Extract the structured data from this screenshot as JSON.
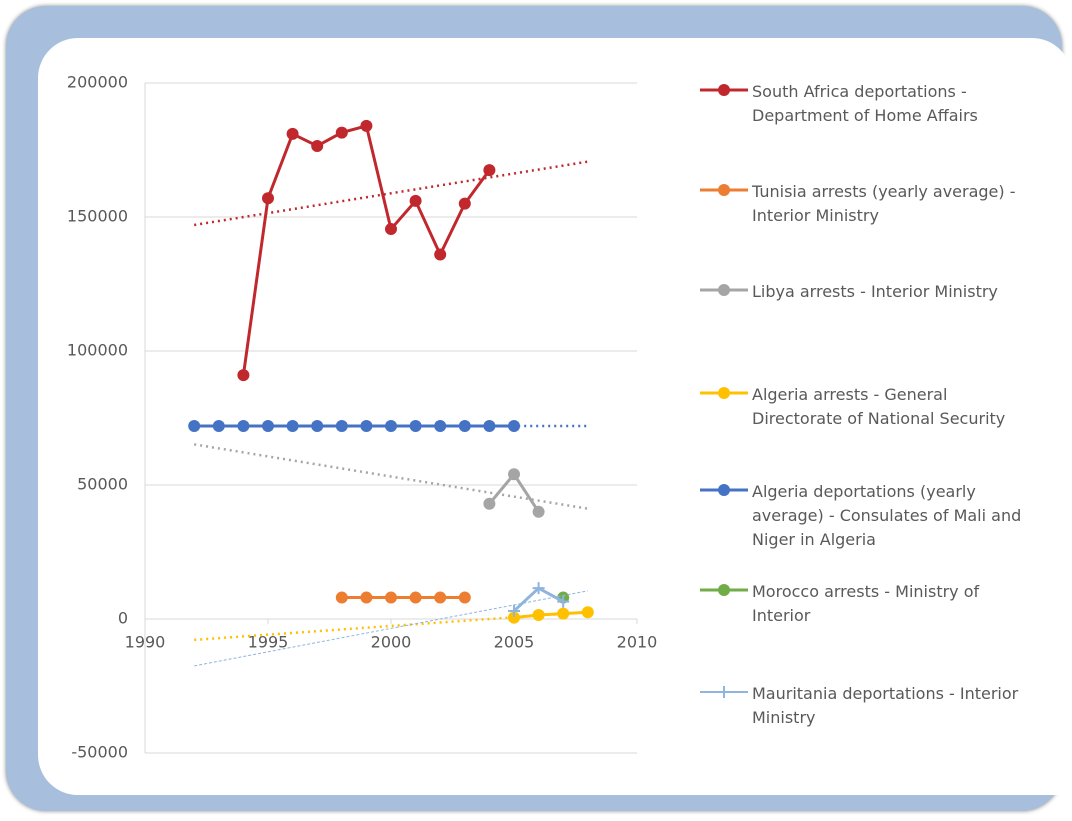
{
  "chart_data": {
    "type": "line",
    "xlim": [
      1990,
      2010
    ],
    "xticks": [
      1990,
      1995,
      2000,
      2005,
      2010
    ],
    "ylim": [
      -50000,
      200000
    ],
    "yticks": [
      -50000,
      0,
      50000,
      100000,
      150000,
      200000
    ],
    "grid": true,
    "legend": "right",
    "trendline_xlim": [
      1992,
      2008
    ],
    "series": [
      {
        "name": "South Africa deportations - Department of Home Affairs",
        "color": "#c0282d",
        "marker": "circle",
        "trendline": "dotted",
        "x": [
          1994,
          1995,
          1996,
          1997,
          1998,
          1999,
          2000,
          2001,
          2002,
          2003,
          2004
        ],
        "values": [
          91000,
          157000,
          181000,
          176500,
          181500,
          184000,
          145500,
          156000,
          136000,
          155000,
          167500
        ]
      },
      {
        "name": "Tunisia arrests (yearly average) - Interior Ministry",
        "color": "#ed7d31",
        "marker": "circle",
        "x": [
          1998,
          1999,
          2000,
          2001,
          2002,
          2003
        ],
        "values": [
          8000,
          8000,
          8000,
          8000,
          8000,
          8000
        ]
      },
      {
        "name": "Libya arrests - Interior Ministry",
        "color": "#a5a5a5",
        "marker": "circle",
        "trendline": "dotted",
        "x": [
          2004,
          2005,
          2006
        ],
        "values": [
          43000,
          54000,
          40000
        ]
      },
      {
        "name": "Algeria arrests - General Directorate of National Security",
        "color": "#ffc000",
        "marker": "circle",
        "trendline": "dotted",
        "x": [
          2005,
          2006,
          2007,
          2008
        ],
        "values": [
          500,
          1500,
          2000,
          2500
        ]
      },
      {
        "name": "Algeria deportations (yearly average) - Consulates of Mali and Niger in Algeria",
        "color": "#4472c4",
        "marker": "circle",
        "trendline": "dotted",
        "x": [
          1992,
          1993,
          1994,
          1995,
          1996,
          1997,
          1998,
          1999,
          2000,
          2001,
          2002,
          2003,
          2004,
          2005
        ],
        "values": [
          72000,
          72000,
          72000,
          72000,
          72000,
          72000,
          72000,
          72000,
          72000,
          72000,
          72000,
          72000,
          72000,
          72000
        ]
      },
      {
        "name": "Morocco arrests - Ministry of Interior",
        "color": "#70ad47",
        "marker": "circle",
        "x": [
          2007
        ],
        "values": [
          8000
        ]
      },
      {
        "name": "Mauritania deportations - Interior Ministry",
        "color": "#8fb4de",
        "marker": "plus",
        "trendline": "dashed",
        "x": [
          2005,
          2006,
          2007
        ],
        "values": [
          3000,
          11500,
          6500
        ]
      }
    ]
  }
}
